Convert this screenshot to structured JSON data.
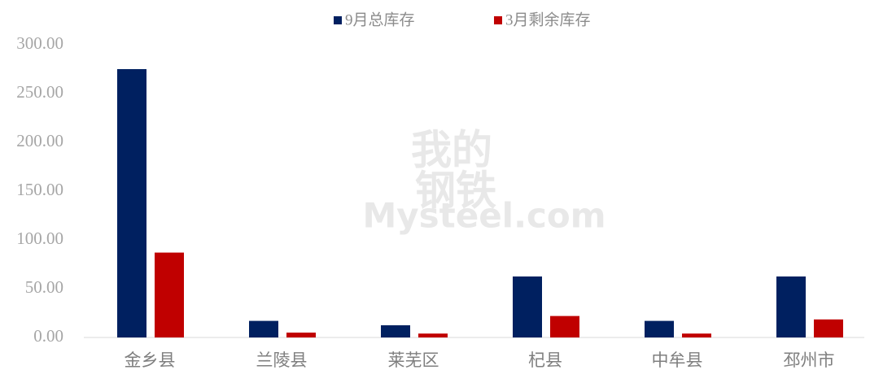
{
  "chart_data": {
    "type": "bar",
    "categories": [
      "金乡县",
      "兰陵县",
      "莱芜区",
      "杞县",
      "中牟县",
      "邳州市"
    ],
    "series": [
      {
        "name": "9月总库存",
        "color": "#002060",
        "values": [
          275,
          17,
          12.5,
          62.5,
          17,
          62.5
        ]
      },
      {
        "name": "3月剩余库存",
        "color": "#c00000",
        "values": [
          87,
          5,
          4,
          22,
          4,
          18.5
        ]
      }
    ],
    "ylim": [
      0,
      300
    ],
    "yticks": [
      {
        "value": 0,
        "label": "0.00"
      },
      {
        "value": 50,
        "label": "50.00"
      },
      {
        "value": 100,
        "label": "100.00"
      },
      {
        "value": 150,
        "label": "150.00"
      },
      {
        "value": 200,
        "label": "200.00"
      },
      {
        "value": 250,
        "label": "250.00"
      },
      {
        "value": 300,
        "label": "300.00"
      }
    ],
    "grid": false,
    "legend": "top",
    "watermark": [
      "我的",
      "钢铁",
      "Mysteel.com"
    ]
  }
}
